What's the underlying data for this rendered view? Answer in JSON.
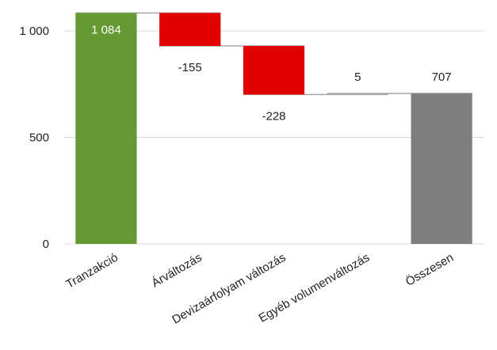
{
  "chart_data": {
    "type": "waterfall",
    "categories": [
      "Tranzakció",
      "Árváltozás",
      "Devizaárfolyam változás",
      "Egyéb volumenváltozás",
      "Összesen"
    ],
    "values": [
      1084,
      -155,
      -228,
      5,
      707
    ],
    "value_labels": [
      "1 084",
      "-155",
      "-228",
      "5",
      "707"
    ],
    "bar_kinds": [
      "total",
      "delta",
      "delta",
      "delta",
      "total"
    ],
    "yticks": [
      0,
      500,
      1000
    ],
    "ytick_labels": [
      "0",
      "500",
      "1 000"
    ],
    "ylim": [
      0,
      1115
    ],
    "grid": true,
    "legend": "none",
    "colors": {
      "first_total": "#659a32",
      "decrease": "#e00000",
      "increase": "#a9a9a9",
      "final_total": "#7f7f7f",
      "connector": "#a6a6a6",
      "gridline": "#d9d9d9"
    }
  }
}
